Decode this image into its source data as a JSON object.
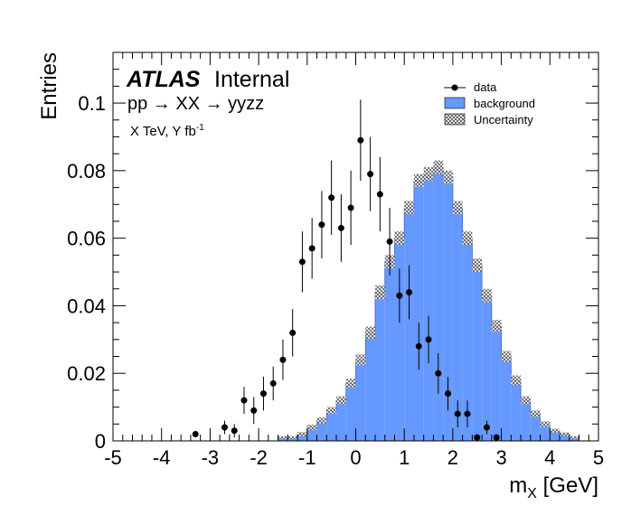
{
  "chart_data": {
    "type": "histogram",
    "xlabel": "m",
    "xlabel_sub": "X",
    "xlabel_unit": " [GeV]",
    "ylabel": "Entries",
    "xlim": [
      -5,
      5
    ],
    "ylim": [
      0,
      0.115
    ],
    "x_ticks": [
      -5,
      -4,
      -3,
      -2,
      -1,
      0,
      1,
      2,
      3,
      4,
      5
    ],
    "y_ticks": [
      0,
      0.02,
      0.04,
      0.06,
      0.08,
      0.1
    ],
    "y_tick_labels": [
      "0",
      "0.02",
      "0.04",
      "0.06",
      "0.08",
      "0.1"
    ],
    "bin_width": 0.2,
    "bin_edges_start": -5.0,
    "background": {
      "name": "background",
      "color": "#6699ff",
      "values": [
        0,
        0,
        0,
        0,
        0,
        0,
        0,
        0,
        0,
        0,
        0,
        0,
        0,
        0,
        0,
        0,
        0,
        0.001,
        0.001,
        0.002,
        0.004,
        0.006,
        0.009,
        0.012,
        0.017,
        0.024,
        0.032,
        0.044,
        0.053,
        0.06,
        0.069,
        0.077,
        0.079,
        0.081,
        0.078,
        0.069,
        0.06,
        0.052,
        0.043,
        0.034,
        0.025,
        0.018,
        0.012,
        0.008,
        0.005,
        0.003,
        0.002,
        0.001,
        0,
        0
      ]
    },
    "uncertainty": {
      "name": "Uncertainty",
      "values": [
        0,
        0,
        0,
        0,
        0,
        0,
        0,
        0,
        0,
        0,
        0,
        0,
        0,
        0,
        0,
        0,
        0,
        0.0004,
        0.0004,
        0.0006,
        0.0008,
        0.001,
        0.001,
        0.0012,
        0.0014,
        0.0016,
        0.0018,
        0.002,
        0.002,
        0.002,
        0.002,
        0.002,
        0.002,
        0.002,
        0.002,
        0.002,
        0.002,
        0.002,
        0.002,
        0.0018,
        0.0016,
        0.0014,
        0.0012,
        0.001,
        0.0008,
        0.0006,
        0.0005,
        0.0004,
        0,
        0
      ]
    },
    "data": {
      "name": "data",
      "points": [
        {
          "x": -3.3,
          "y": 0.002,
          "err": 0.0
        },
        {
          "x": -2.7,
          "y": 0.004,
          "err": 0.002
        },
        {
          "x": -2.5,
          "y": 0.003,
          "err": 0.002
        },
        {
          "x": -2.3,
          "y": 0.012,
          "err": 0.004
        },
        {
          "x": -2.1,
          "y": 0.009,
          "err": 0.004
        },
        {
          "x": -1.9,
          "y": 0.014,
          "err": 0.005
        },
        {
          "x": -1.7,
          "y": 0.017,
          "err": 0.005
        },
        {
          "x": -1.5,
          "y": 0.024,
          "err": 0.006
        },
        {
          "x": -1.3,
          "y": 0.032,
          "err": 0.007
        },
        {
          "x": -1.1,
          "y": 0.053,
          "err": 0.009
        },
        {
          "x": -0.9,
          "y": 0.057,
          "err": 0.009
        },
        {
          "x": -0.7,
          "y": 0.064,
          "err": 0.01
        },
        {
          "x": -0.5,
          "y": 0.072,
          "err": 0.011
        },
        {
          "x": -0.3,
          "y": 0.063,
          "err": 0.01
        },
        {
          "x": -0.1,
          "y": 0.069,
          "err": 0.011
        },
        {
          "x": 0.1,
          "y": 0.089,
          "err": 0.012
        },
        {
          "x": 0.3,
          "y": 0.079,
          "err": 0.011
        },
        {
          "x": 0.5,
          "y": 0.073,
          "err": 0.011
        },
        {
          "x": 0.7,
          "y": 0.059,
          "err": 0.01
        },
        {
          "x": 0.9,
          "y": 0.043,
          "err": 0.008
        },
        {
          "x": 1.1,
          "y": 0.044,
          "err": 0.008
        },
        {
          "x": 1.3,
          "y": 0.028,
          "err": 0.007
        },
        {
          "x": 1.5,
          "y": 0.03,
          "err": 0.007
        },
        {
          "x": 1.7,
          "y": 0.02,
          "err": 0.006
        },
        {
          "x": 1.9,
          "y": 0.014,
          "err": 0.005
        },
        {
          "x": 2.1,
          "y": 0.008,
          "err": 0.004
        },
        {
          "x": 2.3,
          "y": 0.008,
          "err": 0.004
        },
        {
          "x": 2.5,
          "y": 0.001,
          "err": 0.001
        },
        {
          "x": 2.7,
          "y": 0.004,
          "err": 0.002
        },
        {
          "x": 2.9,
          "y": 0.001,
          "err": 0.001
        }
      ]
    },
    "legend_position": "top-right",
    "legend": [
      "data",
      "background",
      "Uncertainty"
    ]
  },
  "labels": {
    "atlas": "ATLAS",
    "internal": "Internal",
    "process": "pp → XX → yyzz",
    "lumi_main": "X TeV, Y fb",
    "lumi_sup": "-1"
  }
}
